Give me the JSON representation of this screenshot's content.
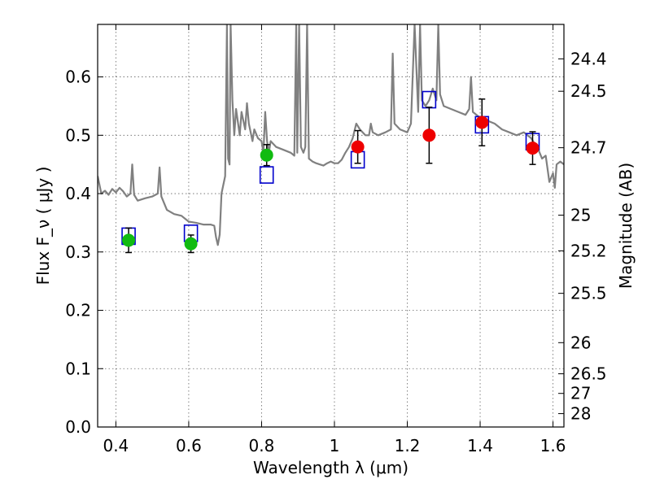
{
  "chart_data": {
    "type": "scatter",
    "title": "",
    "xlabel": "Wavelength  λ (μm)",
    "ylabel": "Flux  F_ν  ( μJy )",
    "y2label": "Magnitude (AB)",
    "xlim": [
      0.35,
      1.63
    ],
    "ylim": [
      0.0,
      0.69
    ],
    "grid": true,
    "legend": "none",
    "x_ticks": [
      0.4,
      0.6,
      0.8,
      1.0,
      1.2,
      1.4,
      1.6
    ],
    "x_tick_labels": [
      "0.4",
      "0.6",
      "0.8",
      "1",
      "1.2",
      "1.4",
      "1.6"
    ],
    "y_ticks": [
      0.0,
      0.1,
      0.2,
      0.3,
      0.4,
      0.5,
      0.6
    ],
    "y_tick_labels": [
      "0.0",
      "0.1",
      "0.2",
      "0.3",
      "0.4",
      "0.5",
      "0.6"
    ],
    "magnitude_ticks": [
      "24.4",
      "24.5",
      "24.7",
      "25",
      "25.2",
      "25.5",
      "26",
      "26.5",
      "27",
      "28"
    ],
    "colors": {
      "template": "#808080",
      "green_points": "#11bb11",
      "red_points": "#ee0000",
      "model_boxes": "#0000cc",
      "error_bars": "#000000",
      "grid": "#666666"
    },
    "series": [
      {
        "kind": "photometry-green",
        "points": [
          {
            "x": 0.435,
            "y": 0.32,
            "err": 0.021
          },
          {
            "x": 0.606,
            "y": 0.314,
            "err": 0.015
          },
          {
            "x": 0.814,
            "y": 0.466,
            "err": 0.018
          }
        ]
      },
      {
        "kind": "photometry-red",
        "points": [
          {
            "x": 1.064,
            "y": 0.48,
            "err": 0.028
          },
          {
            "x": 1.26,
            "y": 0.5,
            "err": 0.048
          },
          {
            "x": 1.405,
            "y": 0.522,
            "err": 0.04
          },
          {
            "x": 1.544,
            "y": 0.478,
            "err": 0.028
          }
        ]
      },
      {
        "kind": "model-boxes",
        "points": [
          {
            "x": 0.435,
            "y": 0.327
          },
          {
            "x": 0.606,
            "y": 0.332
          },
          {
            "x": 0.814,
            "y": 0.432
          },
          {
            "x": 1.064,
            "y": 0.458
          },
          {
            "x": 1.26,
            "y": 0.561
          },
          {
            "x": 1.405,
            "y": 0.518
          },
          {
            "x": 1.544,
            "y": 0.489
          }
        ]
      },
      {
        "kind": "template-spectrum",
        "points": [
          [
            0.35,
            0.43
          ],
          [
            0.36,
            0.4
          ],
          [
            0.37,
            0.405
          ],
          [
            0.38,
            0.398
          ],
          [
            0.39,
            0.408
          ],
          [
            0.4,
            0.402
          ],
          [
            0.41,
            0.41
          ],
          [
            0.42,
            0.404
          ],
          [
            0.43,
            0.395
          ],
          [
            0.44,
            0.4
          ],
          [
            0.445,
            0.45
          ],
          [
            0.45,
            0.398
          ],
          [
            0.46,
            0.388
          ],
          [
            0.48,
            0.392
          ],
          [
            0.5,
            0.395
          ],
          [
            0.515,
            0.4
          ],
          [
            0.52,
            0.445
          ],
          [
            0.525,
            0.395
          ],
          [
            0.54,
            0.372
          ],
          [
            0.56,
            0.365
          ],
          [
            0.58,
            0.362
          ],
          [
            0.6,
            0.352
          ],
          [
            0.62,
            0.35
          ],
          [
            0.64,
            0.347
          ],
          [
            0.66,
            0.347
          ],
          [
            0.67,
            0.345
          ],
          [
            0.675,
            0.325
          ],
          [
            0.68,
            0.312
          ],
          [
            0.685,
            0.33
          ],
          [
            0.69,
            0.4
          ],
          [
            0.7,
            0.43
          ],
          [
            0.705,
            0.69
          ],
          [
            0.708,
            0.46
          ],
          [
            0.712,
            0.45
          ],
          [
            0.715,
            0.69
          ],
          [
            0.72,
            0.56
          ],
          [
            0.725,
            0.5
          ],
          [
            0.73,
            0.545
          ],
          [
            0.74,
            0.5
          ],
          [
            0.745,
            0.54
          ],
          [
            0.755,
            0.51
          ],
          [
            0.76,
            0.555
          ],
          [
            0.765,
            0.52
          ],
          [
            0.775,
            0.49
          ],
          [
            0.78,
            0.51
          ],
          [
            0.79,
            0.495
          ],
          [
            0.8,
            0.49
          ],
          [
            0.805,
            0.47
          ],
          [
            0.81,
            0.54
          ],
          [
            0.815,
            0.49
          ],
          [
            0.82,
            0.47
          ],
          [
            0.825,
            0.49
          ],
          [
            0.84,
            0.48
          ],
          [
            0.86,
            0.475
          ],
          [
            0.88,
            0.47
          ],
          [
            0.89,
            0.465
          ],
          [
            0.895,
            0.69
          ],
          [
            0.898,
            0.47
          ],
          [
            0.903,
            0.69
          ],
          [
            0.908,
            0.48
          ],
          [
            0.915,
            0.47
          ],
          [
            0.92,
            0.48
          ],
          [
            0.925,
            0.69
          ],
          [
            0.93,
            0.46
          ],
          [
            0.94,
            0.455
          ],
          [
            0.95,
            0.452
          ],
          [
            0.96,
            0.45
          ],
          [
            0.97,
            0.448
          ],
          [
            0.98,
            0.452
          ],
          [
            0.99,
            0.455
          ],
          [
            1.0,
            0.452
          ],
          [
            1.01,
            0.452
          ],
          [
            1.02,
            0.458
          ],
          [
            1.03,
            0.47
          ],
          [
            1.04,
            0.48
          ],
          [
            1.05,
            0.495
          ],
          [
            1.06,
            0.52
          ],
          [
            1.07,
            0.51
          ],
          [
            1.085,
            0.5
          ],
          [
            1.095,
            0.5
          ],
          [
            1.1,
            0.52
          ],
          [
            1.105,
            0.505
          ],
          [
            1.12,
            0.5
          ],
          [
            1.14,
            0.505
          ],
          [
            1.155,
            0.51
          ],
          [
            1.16,
            0.64
          ],
          [
            1.165,
            0.52
          ],
          [
            1.18,
            0.51
          ],
          [
            1.2,
            0.505
          ],
          [
            1.21,
            0.52
          ],
          [
            1.22,
            0.69
          ],
          [
            1.23,
            0.54
          ],
          [
            1.235,
            0.69
          ],
          [
            1.24,
            0.56
          ],
          [
            1.25,
            0.55
          ],
          [
            1.26,
            0.56
          ],
          [
            1.27,
            0.58
          ],
          [
            1.28,
            0.56
          ],
          [
            1.285,
            0.69
          ],
          [
            1.29,
            0.57
          ],
          [
            1.3,
            0.55
          ],
          [
            1.32,
            0.545
          ],
          [
            1.34,
            0.54
          ],
          [
            1.36,
            0.535
          ],
          [
            1.37,
            0.545
          ],
          [
            1.375,
            0.6
          ],
          [
            1.38,
            0.54
          ],
          [
            1.4,
            0.53
          ],
          [
            1.42,
            0.525
          ],
          [
            1.44,
            0.52
          ],
          [
            1.46,
            0.51
          ],
          [
            1.48,
            0.505
          ],
          [
            1.5,
            0.5
          ],
          [
            1.52,
            0.505
          ],
          [
            1.54,
            0.495
          ],
          [
            1.56,
            0.475
          ],
          [
            1.57,
            0.46
          ],
          [
            1.58,
            0.465
          ],
          [
            1.59,
            0.42
          ],
          [
            1.6,
            0.435
          ],
          [
            1.605,
            0.41
          ],
          [
            1.61,
            0.45
          ],
          [
            1.62,
            0.455
          ],
          [
            1.63,
            0.45
          ]
        ]
      }
    ]
  }
}
